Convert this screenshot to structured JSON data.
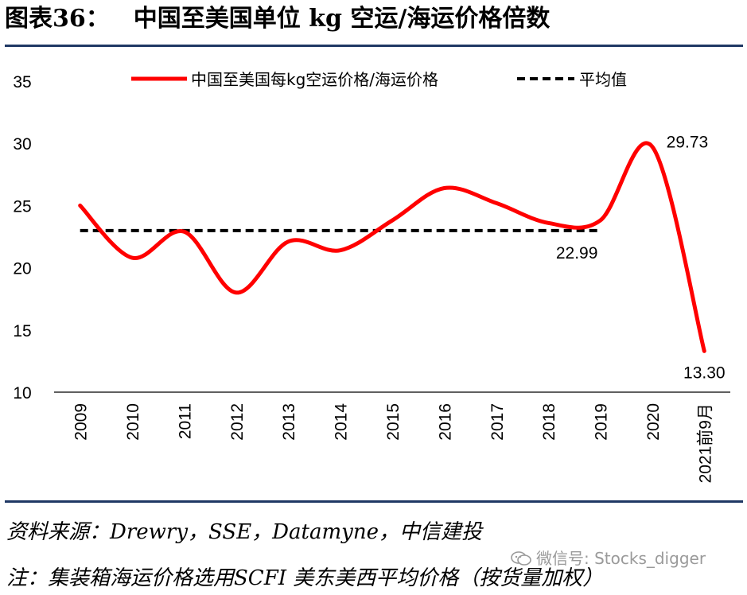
{
  "title": {
    "label": "图表36：",
    "text": "中国至美国单位 kg 空运/海运价格倍数"
  },
  "footer": {
    "source": "资料来源：Drewry，SSE，Datamyne，中信建投",
    "note": "注：集装箱海运价格选用SCFI 美东美西平均价格（按货量加权）",
    "watermark": "微信号: Stocks_digger",
    "watermark_icon": "wechat-icon"
  },
  "chart_data": {
    "type": "line",
    "categories": [
      "2009",
      "2010",
      "2011",
      "2012",
      "2013",
      "2014",
      "2015",
      "2016",
      "2017",
      "2018",
      "2019",
      "2020",
      "2021前9月"
    ],
    "series": [
      {
        "name": "中国至美国每kg空运价格/海运价格",
        "values": [
          25.0,
          20.8,
          22.9,
          18.0,
          22.1,
          21.4,
          23.8,
          26.4,
          25.2,
          23.6,
          23.8,
          29.73,
          13.3
        ],
        "color": "#ff0000",
        "style": "solid-smooth"
      },
      {
        "name": "平均值",
        "value": 22.99,
        "color": "#000000",
        "style": "dashed",
        "span": [
          "2009",
          "2019"
        ]
      }
    ],
    "data_labels": [
      {
        "category": "2020",
        "text": "29.73"
      },
      {
        "category": "2021前9月",
        "text": "13.30"
      },
      {
        "category": "2018",
        "text": "22.99"
      }
    ],
    "yticks": [
      "10",
      "15",
      "20",
      "25",
      "30",
      "35"
    ],
    "ylim": [
      10,
      35
    ],
    "grid": false,
    "legend_position": "top"
  }
}
